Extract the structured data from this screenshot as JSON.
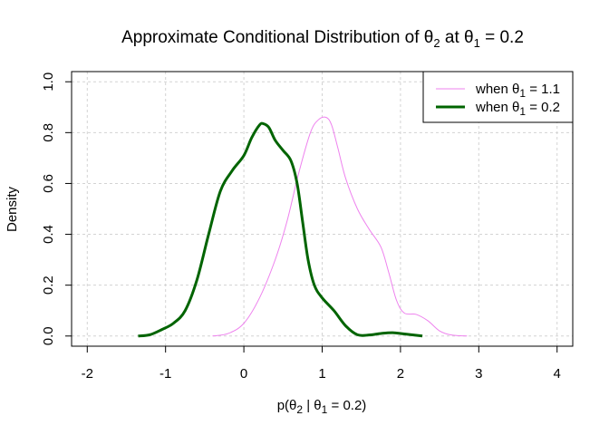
{
  "chart_data": {
    "type": "line",
    "title": {
      "pre": "Approximate Conditional Distribution of θ",
      "sub": "2",
      "mid": " at θ",
      "sub2": "1",
      "post": " = 0.2"
    },
    "xlabel": {
      "pre": "p(θ",
      "sub": "2",
      "mid": " | θ",
      "sub2": "1",
      "post": " = 0.2)"
    },
    "ylabel": "Density",
    "xlim": [
      -2.2,
      4.2
    ],
    "ylim": [
      -0.04,
      1.04
    ],
    "x_ticks": [
      -2,
      -1,
      0,
      1,
      2,
      3,
      4
    ],
    "y_ticks": [
      0.0,
      0.2,
      0.4,
      0.6,
      0.8,
      1.0
    ],
    "x_tick_labels": [
      "-2",
      "-1",
      "0",
      "1",
      "2",
      "3",
      "4"
    ],
    "y_tick_labels": [
      "0.0",
      "0.2",
      "0.4",
      "0.6",
      "0.8",
      "1.0"
    ],
    "grid": true,
    "legend_position": "top-right",
    "series": [
      {
        "legend": {
          "pre": "when  θ",
          "sub": "1",
          "post": " = 1.1"
        },
        "color": "#ee82ee",
        "width": 1,
        "x": [
          -0.4,
          -0.2,
          0.0,
          0.2,
          0.4,
          0.55,
          0.7,
          0.85,
          0.95,
          1.05,
          1.12,
          1.2,
          1.3,
          1.45,
          1.6,
          1.75,
          1.85,
          1.95,
          2.05,
          2.2,
          2.35,
          2.5,
          2.65,
          2.85
        ],
        "y": [
          0.0,
          0.01,
          0.05,
          0.15,
          0.3,
          0.45,
          0.64,
          0.8,
          0.85,
          0.86,
          0.83,
          0.74,
          0.62,
          0.5,
          0.42,
          0.35,
          0.25,
          0.14,
          0.09,
          0.085,
          0.06,
          0.02,
          0.004,
          0.0
        ]
      },
      {
        "legend": {
          "pre": "when  θ",
          "sub": "1",
          "post": " = 0.2"
        },
        "color": "#006400",
        "width": 3,
        "x": [
          -1.35,
          -1.2,
          -1.05,
          -0.9,
          -0.75,
          -0.6,
          -0.45,
          -0.3,
          -0.15,
          0.0,
          0.1,
          0.2,
          0.25,
          0.32,
          0.4,
          0.5,
          0.6,
          0.68,
          0.75,
          0.82,
          0.9,
          1.0,
          1.15,
          1.3,
          1.45,
          1.6,
          1.75,
          1.9,
          2.05,
          2.28
        ],
        "y": [
          0.0,
          0.005,
          0.025,
          0.05,
          0.1,
          0.22,
          0.4,
          0.57,
          0.65,
          0.71,
          0.78,
          0.83,
          0.835,
          0.82,
          0.77,
          0.73,
          0.69,
          0.6,
          0.45,
          0.3,
          0.2,
          0.15,
          0.1,
          0.04,
          0.005,
          0.004,
          0.01,
          0.013,
          0.008,
          0.0
        ]
      }
    ]
  }
}
